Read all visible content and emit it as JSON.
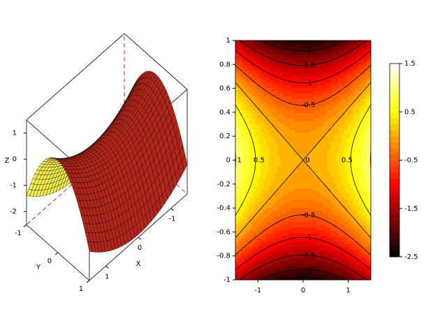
{
  "chart_data": [
    {
      "type": "surface3d",
      "x_label": "X",
      "y_label": "Y",
      "z_label": "Z",
      "xlim": [
        -1.5,
        1.5
      ],
      "ylim": [
        -1,
        1
      ],
      "zlim": [
        -2.5,
        1.5
      ],
      "xticks": [
        -1,
        0,
        1
      ],
      "yticks": [
        -1,
        0,
        1
      ],
      "zticks": [
        -2,
        -1,
        0,
        1
      ]
    },
    {
      "type": "contour",
      "colormap": "hot",
      "xlim": [
        -1.5,
        1.5
      ],
      "ylim": [
        -1,
        1
      ],
      "xticks": [
        -1,
        0,
        1
      ],
      "yticks": [
        -1,
        -0.8,
        -0.6,
        -0.4,
        -0.2,
        0,
        0.2,
        0.4,
        0.6,
        0.8,
        1
      ],
      "contour_levels": [
        -2,
        -1.5,
        -1,
        -0.5,
        0,
        0.5,
        1
      ],
      "colorbar_lim": [
        -2.5,
        1.5
      ],
      "colorbar_ticks": [
        1.5,
        0.5,
        -0.5,
        -1.5,
        -2.5
      ]
    }
  ]
}
